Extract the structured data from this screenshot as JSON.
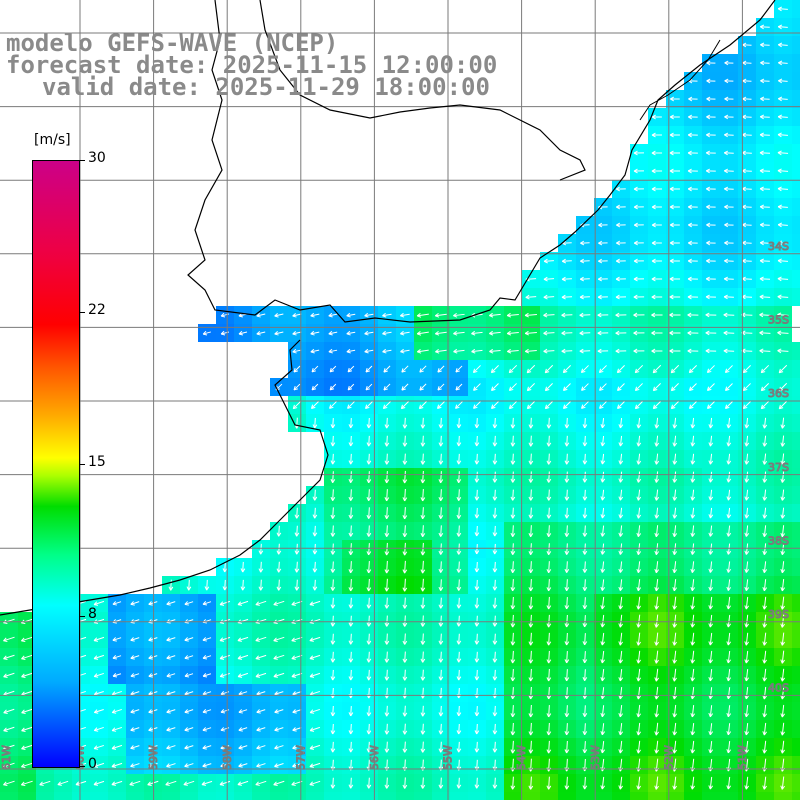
{
  "header": {
    "model": "modelo GEFS-WAVE (NCEP)",
    "forecast": "forecast date: 2025-11-15 12:00:00",
    "valid": "valid date: 2025-11-29 18:00:00"
  },
  "colorbar": {
    "unit": "[m/s]",
    "ticks": [
      "30",
      "22",
      "15",
      "8",
      "0"
    ],
    "colors": [
      "#0000ff",
      "#00aaff",
      "#00ffff",
      "#00dd00",
      "#ffff00",
      "#ff0000",
      "#cc0088"
    ]
  },
  "map_labels": {
    "lat": [
      "34S",
      "35S",
      "36S",
      "37S",
      "38S",
      "39S",
      "40S"
    ],
    "lon": [
      "61W",
      "60W",
      "59W",
      "58W",
      "57W",
      "56W",
      "55W",
      "54W",
      "53W",
      "52W",
      "51W"
    ]
  },
  "chart_data": {
    "type": "heatmap",
    "variable": "wind speed",
    "unit": "m/s",
    "colorbar_range": [
      0,
      30
    ],
    "colorbar_ticks": [
      0,
      8,
      15,
      22,
      30
    ],
    "dominant_wind_direction": "north-to-south, turning westward near coast",
    "field_summary": [
      {
        "region": "estuary / coastal north",
        "speed_range": [
          3,
          7
        ]
      },
      {
        "region": "central offshore",
        "speed_range": [
          8,
          11
        ]
      },
      {
        "region": "south-east offshore",
        "speed_range": [
          11,
          14
        ]
      }
    ]
  }
}
